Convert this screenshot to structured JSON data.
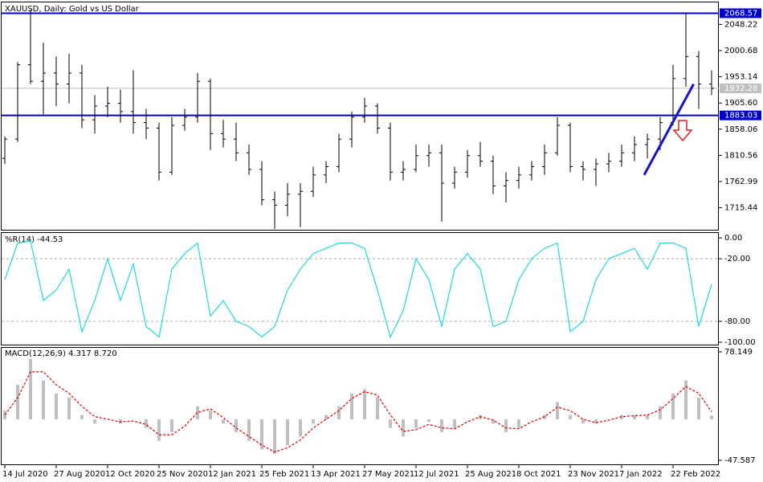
{
  "chart_data": [
    {
      "type": "ohlc",
      "title": "XAUUSD, Daily:  Gold vs US Dollar",
      "categories": [
        "14 Jul 2020",
        null,
        null,
        null,
        "27 Aug 2020",
        null,
        null,
        null,
        "12 Oct 2020",
        null,
        null,
        null,
        "25 Nov 2020",
        null,
        null,
        null,
        "12 Jan 2021",
        null,
        null,
        null,
        "25 Feb 2021",
        null,
        null,
        null,
        "13 Apr 2021",
        null,
        null,
        null,
        "27 May 2021",
        null,
        null,
        null,
        "12 Jul 2021",
        null,
        null,
        null,
        "25 Aug 2021",
        null,
        null,
        null,
        "8 Oct 2021",
        null,
        null,
        null,
        "23 Nov 2021",
        null,
        null,
        null,
        "7 Jan 2022",
        null,
        null,
        null,
        "22 Feb 2022",
        null,
        null,
        null
      ],
      "open": [
        1805,
        1840,
        1975,
        1945,
        1960,
        1940,
        1960,
        1875,
        1900,
        1905,
        1890,
        1870,
        1860,
        1780,
        1865,
        1880,
        1945,
        1850,
        1840,
        1815,
        1785,
        1730,
        1720,
        1740,
        1745,
        1775,
        1790,
        1840,
        1880,
        1900,
        1860,
        1780,
        1785,
        1810,
        1815,
        1760,
        1780,
        1810,
        1800,
        1755,
        1765,
        1775,
        1790,
        1815,
        1865,
        1790,
        1785,
        1795,
        1800,
        1815,
        1830,
        1840,
        1870,
        1950,
        1990,
        1940
      ],
      "high": [
        1845,
        1980,
        2075,
        2015,
        1990,
        1995,
        1975,
        1920,
        1935,
        1930,
        1965,
        1895,
        1870,
        1880,
        1895,
        1960,
        1950,
        1875,
        1870,
        1830,
        1800,
        1745,
        1760,
        1760,
        1790,
        1800,
        1850,
        1890,
        1915,
        1905,
        1870,
        1800,
        1830,
        1830,
        1830,
        1790,
        1820,
        1835,
        1810,
        1780,
        1790,
        1800,
        1830,
        1880,
        1870,
        1800,
        1805,
        1815,
        1830,
        1845,
        1850,
        1880,
        1975,
        2070,
        2000,
        1965
      ],
      "low": [
        1795,
        1835,
        1940,
        1885,
        1900,
        1905,
        1860,
        1850,
        1880,
        1870,
        1850,
        1840,
        1765,
        1775,
        1855,
        1870,
        1820,
        1825,
        1800,
        1775,
        1720,
        1677,
        1700,
        1680,
        1735,
        1760,
        1780,
        1825,
        1870,
        1850,
        1765,
        1765,
        1780,
        1790,
        1690,
        1750,
        1770,
        1790,
        1740,
        1725,
        1750,
        1765,
        1775,
        1810,
        1780,
        1765,
        1755,
        1780,
        1790,
        1800,
        1805,
        1820,
        1865,
        1935,
        1895,
        1920
      ],
      "close": [
        1840,
        1975,
        1945,
        1960,
        1940,
        1960,
        1875,
        1900,
        1905,
        1890,
        1870,
        1860,
        1780,
        1865,
        1880,
        1945,
        1850,
        1840,
        1815,
        1785,
        1730,
        1720,
        1740,
        1745,
        1775,
        1790,
        1840,
        1880,
        1900,
        1860,
        1780,
        1785,
        1810,
        1815,
        1760,
        1780,
        1810,
        1800,
        1755,
        1765,
        1775,
        1790,
        1815,
        1865,
        1790,
        1785,
        1795,
        1800,
        1815,
        1830,
        1840,
        1870,
        1950,
        1990,
        1940,
        1932.28
      ],
      "color": "#000000",
      "ylim": [
        1674,
        2088.2
      ],
      "yticks": [
        2048.22,
        2000.68,
        1953.14,
        {
          "value": 1905.6,
          "label": "1905.60"
        },
        1858.06,
        1810.56,
        1762.99,
        1715.44
      ],
      "levels": [
        {
          "value": 2068.57,
          "color": "#0000cc"
        },
        {
          "value": 1883.03,
          "color": "#0000cc"
        },
        {
          "value": 1932.28,
          "color": "#c0c0c0"
        }
      ],
      "trendline": {
        "x": [
          49.75,
          53.6
        ],
        "values": [
          1775,
          1940
        ],
        "color": "#1414c8"
      }
    },
    {
      "type": "line",
      "title": "%R(14) -44.53",
      "values": [
        -40,
        -5,
        -3,
        -60,
        -50,
        -30,
        -90,
        -60,
        -20,
        -60,
        -25,
        -85,
        -95,
        -30,
        -15,
        -5,
        -75,
        -60,
        -80,
        -85,
        -95,
        -85,
        -50,
        -30,
        -15,
        -10,
        -5,
        -5,
        -10,
        -50,
        -95,
        -70,
        -20,
        -40,
        -85,
        -30,
        -15,
        -30,
        -85,
        -80,
        -40,
        -20,
        -10,
        -5,
        -90,
        -80,
        -40,
        -20,
        -15,
        -10,
        -30,
        -5,
        -5,
        -10,
        -85,
        -44.53
      ],
      "color": "#20d8d8",
      "ylim": [
        -103.1,
        4.7
      ],
      "yticks": [
        {
          "value": 0,
          "label": "0.00"
        },
        {
          "value": -20,
          "label": "-20.00"
        },
        {
          "value": -80,
          "label": "-80.00"
        },
        {
          "value": -100,
          "label": "-100.00"
        }
      ],
      "levels": [
        -20,
        -80
      ]
    },
    {
      "type": "macd",
      "title": "MACD(12,26,9) 4.317 8.720",
      "series": [
        {
          "color": "#c0c0c0",
          "values": [
            10,
            40,
            70,
            45,
            30,
            25,
            5,
            -5,
            0,
            -5,
            0,
            -10,
            -25,
            -15,
            0,
            15,
            10,
            -5,
            -15,
            -25,
            -35,
            -40,
            -30,
            -20,
            -5,
            5,
            15,
            30,
            35,
            25,
            -10,
            -20,
            -10,
            -3,
            -15,
            -10,
            0,
            5,
            -5,
            -15,
            -10,
            0,
            5,
            20,
            5,
            -5,
            -5,
            0,
            5,
            5,
            5,
            15,
            30,
            45,
            25,
            4.317
          ]
        },
        {
          "color": "#e00000",
          "values": [
            5,
            25,
            55,
            55,
            40,
            30,
            15,
            3,
            0,
            -3,
            -2,
            -6,
            -18,
            -18,
            -8,
            8,
            12,
            2,
            -10,
            -20,
            -30,
            -38,
            -33,
            -24,
            -10,
            0,
            10,
            24,
            32,
            28,
            5,
            -14,
            -12,
            -6,
            -10,
            -11,
            -3,
            3,
            -1,
            -10,
            -11,
            -3,
            3,
            14,
            10,
            0,
            -4,
            -1,
            3,
            4,
            5,
            11,
            24,
            38,
            30,
            8.72
          ]
        }
      ],
      "ylim": [
        -47.587,
        78.149
      ],
      "yticks": [
        78.149,
        -47.587
      ]
    }
  ]
}
